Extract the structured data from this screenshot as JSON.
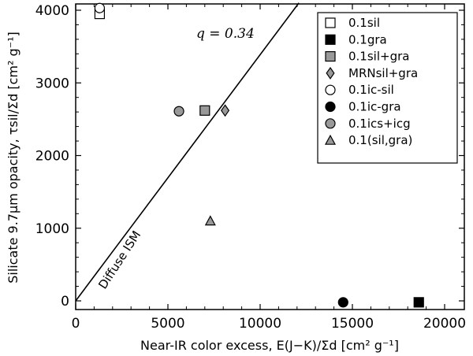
{
  "chart_data": {
    "type": "scatter",
    "xlabel": "Near-IR color excess, E(J−K)/Σd [cm² g⁻¹]",
    "ylabel": "Silicate 9.7μm opacity, τsil/Σd [cm² g⁻¹]",
    "xlim": [
      0,
      21000
    ],
    "ylim": [
      -100,
      4100
    ],
    "xticks": [
      0,
      5000,
      10000,
      15000,
      20000
    ],
    "yticks": [
      0,
      1000,
      2000,
      3000,
      4000
    ],
    "xtick_labels": [
      "0",
      "5000",
      "10000",
      "15000",
      "20000"
    ],
    "ytick_labels": [
      "0",
      "1000",
      "2000",
      "3000",
      "4000"
    ],
    "grid": false,
    "legend_position": "top-right",
    "series": [
      {
        "name": "0.1sil",
        "marker": "square",
        "fill": "#ffffff",
        "x": [
          1300
        ],
        "y": [
          3950
        ]
      },
      {
        "name": "0.1gra",
        "marker": "square",
        "fill": "#000000",
        "x": [
          18600
        ],
        "y": [
          -20
        ]
      },
      {
        "name": "0.1sil+gra",
        "marker": "square",
        "fill": "#999999",
        "x": [
          7000
        ],
        "y": [
          2620
        ]
      },
      {
        "name": "MRNsil+gra",
        "marker": "diamond",
        "fill": "#999999",
        "x": [
          8100
        ],
        "y": [
          2620
        ]
      },
      {
        "name": "0.1ic-sil",
        "marker": "circle",
        "fill": "#ffffff",
        "x": [
          1300
        ],
        "y": [
          4030
        ]
      },
      {
        "name": "0.1ic-gra",
        "marker": "circle",
        "fill": "#000000",
        "x": [
          14500
        ],
        "y": [
          -20
        ]
      },
      {
        "name": "0.1ics+icg",
        "marker": "circle",
        "fill": "#999999",
        "x": [
          5600
        ],
        "y": [
          2610
        ]
      },
      {
        "name": "0.1(sil,gra)",
        "marker": "triangle",
        "fill": "#999999",
        "x": [
          7300
        ],
        "y": [
          1100
        ]
      }
    ],
    "lines": [
      {
        "x": [
          0,
          12100
        ],
        "y": [
          0,
          4100
        ]
      }
    ],
    "annotations": {
      "q_label": "q = 0.34",
      "diffuse_label": "Diffuse ISM"
    }
  }
}
